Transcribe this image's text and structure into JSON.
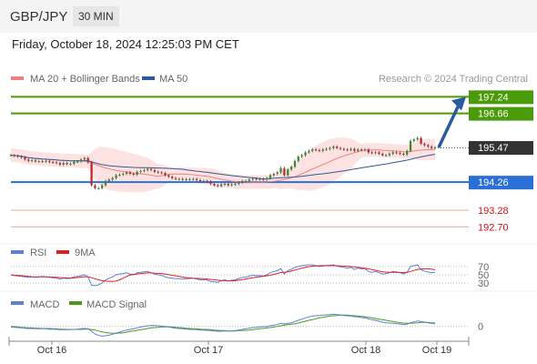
{
  "header": {
    "pair": "GBP/JPY",
    "timeframe": "30 MIN"
  },
  "datetime": "Friday, October 18, 2024 12:25:03 PM CET",
  "attribution": "Research © 2024 Trading Central",
  "legend_main": [
    {
      "label": "MA 20 + Bollinger Bands",
      "color": "#f08080"
    },
    {
      "label": "MA 50",
      "color": "#2e5a9a"
    }
  ],
  "legend_rsi": [
    {
      "label": "RSI",
      "color": "#5b7fd6"
    },
    {
      "label": "9MA",
      "color": "#e02020"
    }
  ],
  "legend_macd": [
    {
      "label": "MACD",
      "color": "#5b7fd6"
    },
    {
      "label": "MACD Signal",
      "color": "#4a9a1a"
    }
  ],
  "chart_data": {
    "type": "candlestick",
    "ylim": [
      192.2,
      197.6
    ],
    "x_tick_labels": [
      "Oct 16",
      "Oct 17",
      "Oct 18",
      "Oct 19"
    ],
    "price_levels": [
      {
        "value": 197.24,
        "label": "197.24",
        "style": "resistance",
        "color": "#4a9a0a"
      },
      {
        "value": 196.66,
        "label": "196.66",
        "style": "resistance",
        "color": "#4a9a0a"
      },
      {
        "value": 195.47,
        "label": "195.47",
        "style": "current",
        "color": "#333333"
      },
      {
        "value": 194.26,
        "label": "194.26",
        "style": "pivot",
        "color": "#2a6fd6"
      },
      {
        "value": 193.28,
        "label": "193.28",
        "style": "support",
        "color": "#d01010"
      },
      {
        "value": 192.7,
        "label": "192.70",
        "style": "support",
        "color": "#d01010"
      }
    ],
    "close": [
      195.2,
      195.18,
      195.15,
      195.12,
      195.05,
      195.0,
      195.02,
      194.98,
      194.99,
      194.98,
      195.0,
      194.96,
      194.95,
      194.93,
      194.87,
      194.93,
      194.89,
      194.9,
      194.97,
      194.98,
      195.05,
      195.1,
      194.95,
      194.15,
      194.05,
      194.05,
      194.15,
      194.3,
      194.35,
      194.4,
      194.5,
      194.52,
      194.55,
      194.6,
      194.55,
      194.52,
      194.62,
      194.65,
      194.68,
      194.72,
      194.68,
      194.62,
      194.6,
      194.58,
      194.5,
      194.45,
      194.4,
      194.37,
      194.37,
      194.35,
      194.36,
      194.36,
      194.37,
      194.33,
      194.3,
      194.3,
      194.28,
      194.2,
      194.15,
      194.12,
      194.18,
      194.2,
      194.15,
      194.18,
      194.2,
      194.25,
      194.3,
      194.3,
      194.35,
      194.38,
      194.36,
      194.37,
      194.35,
      194.4,
      194.5,
      194.55,
      194.6,
      194.75,
      194.5,
      194.7,
      194.8,
      195.0,
      195.15,
      195.2,
      195.3,
      195.35,
      195.4,
      195.38,
      195.35,
      195.4,
      195.42,
      195.45,
      195.5,
      195.45,
      195.42,
      195.4,
      195.38,
      195.42,
      195.35,
      195.4,
      195.38,
      195.4,
      195.3,
      195.28,
      195.3,
      195.25,
      195.2,
      195.2,
      195.25,
      195.3,
      195.28,
      195.25,
      195.22,
      195.35,
      195.7,
      195.75,
      195.8,
      195.6,
      195.55,
      195.5,
      195.45,
      195.47
    ],
    "projection": {
      "from": 195.47,
      "to": 197.24
    },
    "rsi_levels": [
      70,
      50,
      30
    ],
    "rsi": [
      50,
      48,
      47,
      46,
      45,
      44,
      45,
      44,
      45,
      46,
      45,
      44,
      43,
      42,
      40,
      42,
      41,
      42,
      45,
      46,
      48,
      50,
      45,
      25,
      24,
      26,
      30,
      38,
      42,
      45,
      50,
      52,
      53,
      55,
      52,
      50,
      55,
      56,
      57,
      58,
      55,
      52,
      50,
      49,
      45,
      43,
      42,
      41,
      41,
      40,
      41,
      41,
      42,
      40,
      38,
      38,
      37,
      34,
      33,
      32,
      36,
      38,
      35,
      37,
      38,
      41,
      44,
      44,
      47,
      49,
      48,
      48,
      47,
      50,
      55,
      58,
      60,
      65,
      52,
      60,
      63,
      68,
      70,
      72,
      73,
      74,
      74,
      72,
      70,
      71,
      72,
      73,
      74,
      71,
      69,
      68,
      66,
      68,
      63,
      66,
      64,
      65,
      58,
      56,
      58,
      55,
      52,
      53,
      55,
      58,
      57,
      55,
      52,
      56,
      70,
      72,
      74,
      62,
      59,
      57,
      55,
      56
    ],
    "rsi_ma9": [
      50,
      49,
      48.5,
      48,
      47,
      46,
      45.5,
      45,
      45,
      45,
      45,
      44.8,
      44.5,
      44,
      43.5,
      43,
      42.5,
      42,
      42.5,
      43.5,
      44.5,
      45.5,
      45.5,
      43,
      40.5,
      38,
      36,
      35,
      34.5,
      34,
      35,
      38,
      42,
      46,
      49.5,
      51,
      52,
      53,
      54,
      54.5,
      54.5,
      54,
      53.5,
      53,
      52,
      50.5,
      49,
      47.5,
      46,
      44.5,
      43.5,
      42.5,
      42,
      41.5,
      41,
      40.5,
      40,
      39,
      38,
      37,
      36.5,
      36,
      35.5,
      35.5,
      36,
      37,
      38.5,
      40,
      41.5,
      43,
      44.5,
      45.5,
      46.5,
      47.5,
      49,
      51,
      53,
      55.5,
      56,
      57.5,
      59,
      61.5,
      63.5,
      66,
      68,
      69.5,
      71,
      71.5,
      72,
      72,
      72,
      72,
      72,
      71.8,
      71.5,
      71,
      70.5,
      70,
      69,
      68,
      67,
      66,
      64.5,
      62.5,
      61,
      59,
      57.5,
      56.5,
      56,
      56,
      56,
      55.5,
      55.5,
      56,
      58,
      60.5,
      63,
      64,
      64.5,
      64.5,
      63.5,
      62
    ],
    "macd": [
      -0.02,
      -0.03,
      -0.04,
      -0.05,
      -0.06,
      -0.07,
      -0.07,
      -0.08,
      -0.08,
      -0.08,
      -0.08,
      -0.09,
      -0.09,
      -0.1,
      -0.11,
      -0.11,
      -0.11,
      -0.11,
      -0.1,
      -0.09,
      -0.08,
      -0.07,
      -0.08,
      -0.16,
      -0.25,
      -0.3,
      -0.32,
      -0.31,
      -0.29,
      -0.26,
      -0.22,
      -0.19,
      -0.15,
      -0.12,
      -0.1,
      -0.08,
      -0.05,
      -0.02,
      0.0,
      0.02,
      0.03,
      0.03,
      0.02,
      0.01,
      0.0,
      -0.02,
      -0.04,
      -0.06,
      -0.07,
      -0.08,
      -0.09,
      -0.1,
      -0.1,
      -0.11,
      -0.12,
      -0.12,
      -0.13,
      -0.14,
      -0.15,
      -0.16,
      -0.16,
      -0.15,
      -0.15,
      -0.15,
      -0.14,
      -0.12,
      -0.1,
      -0.08,
      -0.06,
      -0.04,
      -0.03,
      -0.02,
      -0.01,
      0.0,
      0.02,
      0.04,
      0.06,
      0.1,
      0.08,
      0.1,
      0.12,
      0.16,
      0.2,
      0.24,
      0.28,
      0.31,
      0.34,
      0.35,
      0.36,
      0.37,
      0.38,
      0.39,
      0.4,
      0.39,
      0.38,
      0.36,
      0.35,
      0.34,
      0.32,
      0.31,
      0.29,
      0.28,
      0.25,
      0.22,
      0.2,
      0.17,
      0.14,
      0.12,
      0.11,
      0.1,
      0.09,
      0.08,
      0.06,
      0.07,
      0.12,
      0.15,
      0.18,
      0.16,
      0.14,
      0.12,
      0.1,
      0.09
    ],
    "macd_signal": [
      0.0,
      -0.01,
      -0.02,
      -0.03,
      -0.04,
      -0.05,
      -0.05,
      -0.06,
      -0.06,
      -0.07,
      -0.07,
      -0.07,
      -0.08,
      -0.08,
      -0.09,
      -0.09,
      -0.1,
      -0.1,
      -0.1,
      -0.1,
      -0.1,
      -0.09,
      -0.09,
      -0.1,
      -0.12,
      -0.15,
      -0.18,
      -0.2,
      -0.22,
      -0.23,
      -0.23,
      -0.22,
      -0.21,
      -0.19,
      -0.17,
      -0.15,
      -0.13,
      -0.11,
      -0.09,
      -0.07,
      -0.05,
      -0.04,
      -0.03,
      -0.02,
      -0.02,
      -0.02,
      -0.02,
      -0.03,
      -0.04,
      -0.05,
      -0.06,
      -0.07,
      -0.08,
      -0.08,
      -0.09,
      -0.1,
      -0.1,
      -0.11,
      -0.12,
      -0.13,
      -0.14,
      -0.14,
      -0.15,
      -0.15,
      -0.15,
      -0.14,
      -0.14,
      -0.13,
      -0.12,
      -0.11,
      -0.09,
      -0.08,
      -0.07,
      -0.05,
      -0.04,
      -0.02,
      0.0,
      0.02,
      0.04,
      0.06,
      0.07,
      0.09,
      0.11,
      0.14,
      0.17,
      0.2,
      0.22,
      0.25,
      0.28,
      0.3,
      0.32,
      0.34,
      0.35,
      0.36,
      0.37,
      0.37,
      0.37,
      0.36,
      0.35,
      0.34,
      0.33,
      0.32,
      0.3,
      0.28,
      0.26,
      0.24,
      0.22,
      0.2,
      0.18,
      0.16,
      0.14,
      0.12,
      0.11,
      0.1,
      0.1,
      0.11,
      0.12,
      0.13,
      0.13,
      0.13,
      0.12,
      0.11
    ],
    "macd_zero_label": "0"
  }
}
